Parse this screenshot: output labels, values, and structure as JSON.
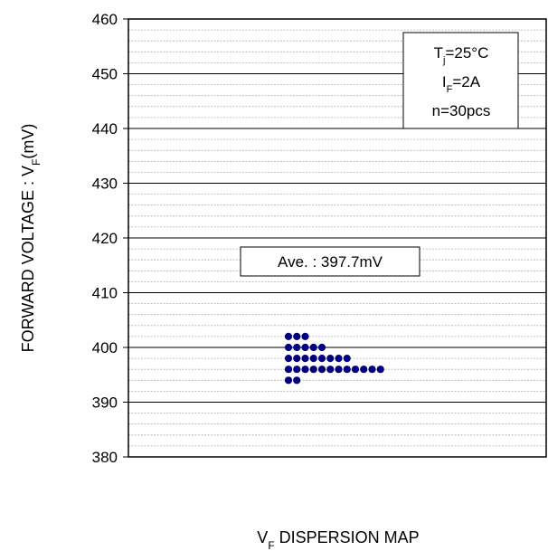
{
  "chart_data": {
    "type": "scatter",
    "title": "",
    "xlabel": {
      "main": "V",
      "sub": "F",
      "rest": " DISPERSION MAP"
    },
    "ylabel": {
      "main": "FORWARD VOLTAGE : V",
      "sub": "F",
      "rest": "(mV)"
    },
    "ylim": [
      380,
      460
    ],
    "y_ticks": [
      "460",
      "450",
      "440",
      "430",
      "420",
      "410",
      "400",
      "390",
      "380"
    ],
    "major_step": 10,
    "minor_step": 2,
    "grid": true,
    "marker_color": "#000080",
    "counts_by_value": [
      {
        "y": 402,
        "count": 3
      },
      {
        "y": 400,
        "count": 5
      },
      {
        "y": 398,
        "count": 8
      },
      {
        "y": 396,
        "count": 12
      },
      {
        "y": 394,
        "count": 2
      }
    ],
    "conditions": [
      {
        "main": "T",
        "sub": "j",
        "rest": "=25°C"
      },
      {
        "main": "I",
        "sub": "F",
        "rest": "=2A"
      },
      {
        "main": "n=30pcs",
        "sub": "",
        "rest": ""
      }
    ],
    "average_label": "Ave. : 397.7mV"
  }
}
